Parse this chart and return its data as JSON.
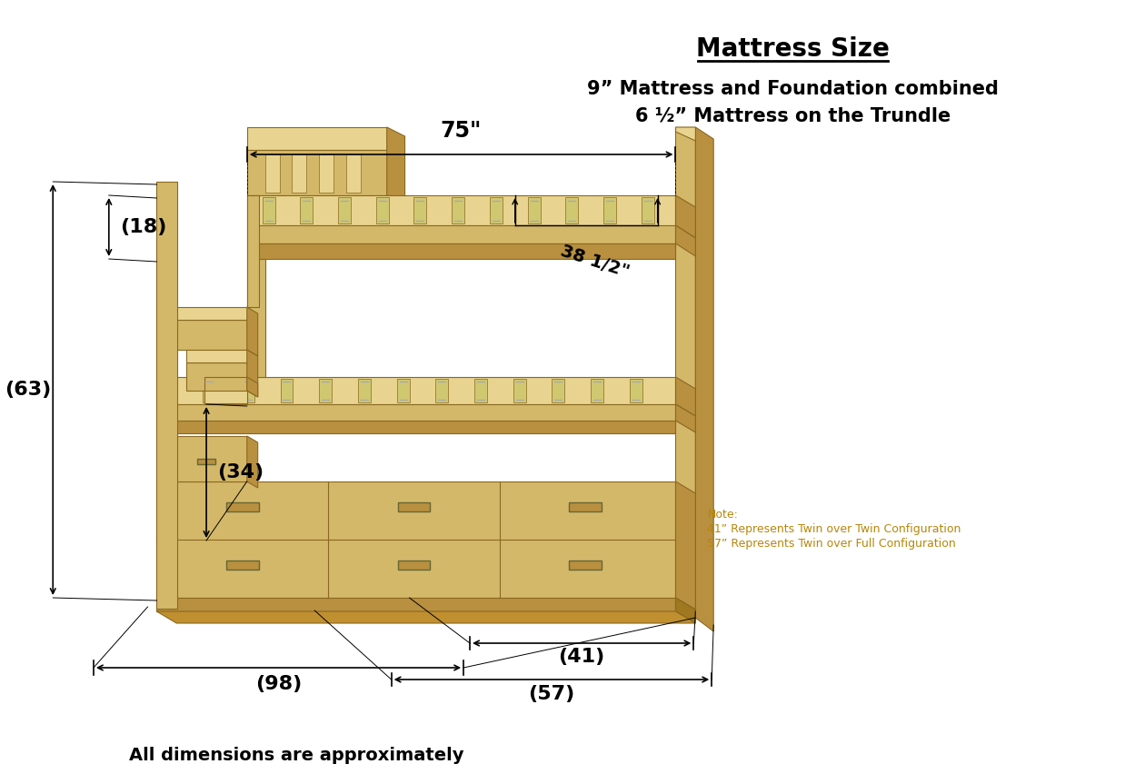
{
  "title": "Mattress Size",
  "subtitle_line1": "9” Mattress and Foundation combined",
  "subtitle_line2": "6 ½” Mattress on the Trundle",
  "note_line1": "Note:",
  "note_line2": "41” Represents Twin over Twin Configuration",
  "note_line3": "57” Represents Twin over Full Configuration",
  "footer": "All dimensions are approximately",
  "dim_75": "75\"",
  "dim_38": "38 1/2\"",
  "dim_18": "(18)",
  "dim_63": "(63)",
  "dim_34": "(34)",
  "dim_98": "(98)",
  "dim_41": "(41)",
  "dim_57": "(57)",
  "bg_color": "#ffffff",
  "text_color": "#000000",
  "note_color": "#b8860b",
  "wood_main": "#d4b86a",
  "wood_dark": "#b89040",
  "wood_light": "#e8d490",
  "wood_edge": "#8a6820",
  "title_fontsize": 20,
  "subtitle_fontsize": 15,
  "dim_fontsize": 16,
  "note_fontsize": 9,
  "footer_fontsize": 14
}
